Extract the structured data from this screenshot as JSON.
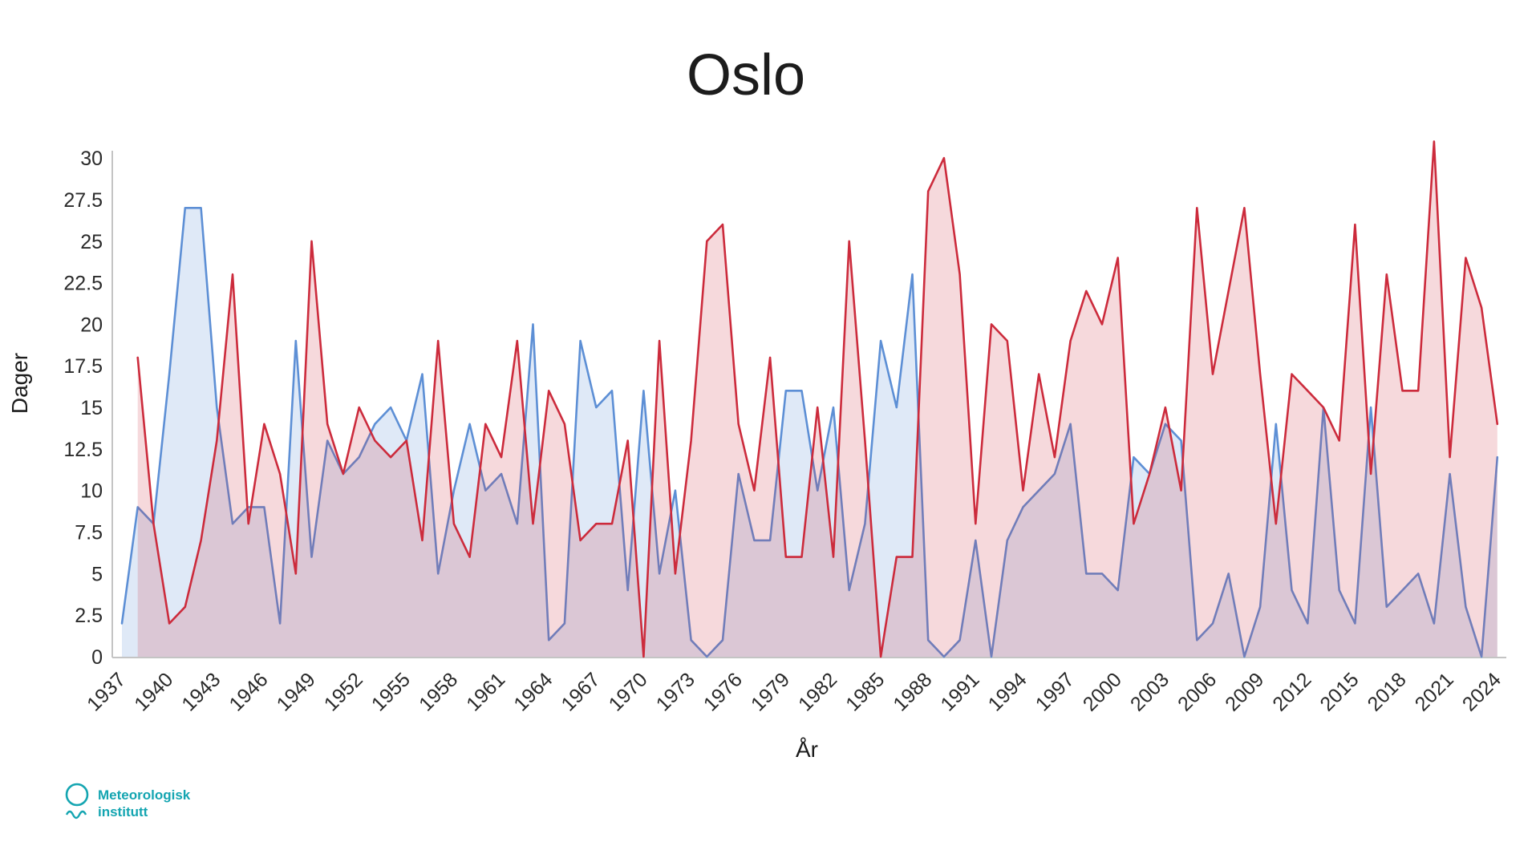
{
  "title": "Oslo",
  "y_axis": {
    "label": "Dager",
    "ticks": [
      0,
      2.5,
      5,
      7.5,
      10,
      12.5,
      15,
      17.5,
      20,
      22.5,
      25,
      27.5,
      30
    ]
  },
  "x_axis": {
    "label": "År",
    "tick_years": [
      1937,
      1940,
      1943,
      1946,
      1949,
      1952,
      1955,
      1958,
      1961,
      1964,
      1967,
      1970,
      1973,
      1976,
      1979,
      1982,
      1985,
      1988,
      1991,
      1994,
      1997,
      2000,
      2003,
      2006,
      2009,
      2012,
      2015,
      2018,
      2021,
      2024
    ]
  },
  "branding": {
    "line1": "Meteorologisk",
    "line2": "institutt",
    "color": "#14a5b1"
  },
  "chart_data": {
    "type": "area",
    "title": "Oslo",
    "xlabel": "År",
    "ylabel": "Dager",
    "xlim": [
      1937,
      2024
    ],
    "ylim": [
      0,
      31.5
    ],
    "grid": false,
    "legend": "none",
    "series": [
      {
        "name": "blue-series",
        "line_color": "#5d8fd5",
        "fill_color": "rgba(93,143,213,0.20)",
        "start_year": 1937,
        "values": [
          2,
          9,
          8,
          17,
          27,
          27,
          15,
          8,
          9,
          9,
          2,
          19,
          6,
          13,
          11,
          12,
          14,
          15,
          13,
          17,
          5,
          10,
          14,
          10,
          11,
          8,
          20,
          1,
          2,
          19,
          15,
          16,
          4,
          16,
          5,
          10,
          1,
          0,
          1,
          11,
          7,
          7,
          16,
          16,
          10,
          15,
          4,
          8,
          19,
          15,
          23,
          1,
          0,
          1,
          7,
          0,
          7,
          9,
          10,
          11,
          14,
          5,
          5,
          4,
          12,
          11,
          14,
          13,
          1,
          2,
          5,
          0,
          3,
          14,
          4,
          2,
          15,
          4,
          2,
          15,
          3,
          4,
          5,
          2,
          11,
          3,
          0,
          12
        ]
      },
      {
        "name": "red-series",
        "line_color": "#cc2b3c",
        "fill_color": "rgba(204,43,60,0.18)",
        "start_year": 1938,
        "values": [
          18,
          8,
          2,
          3,
          7,
          13,
          23,
          8,
          14,
          11,
          5,
          25,
          14,
          11,
          15,
          13,
          12,
          13,
          7,
          19,
          8,
          6,
          14,
          12,
          19,
          8,
          16,
          14,
          7,
          8,
          8,
          13,
          0,
          19,
          5,
          13,
          25,
          26,
          14,
          10,
          18,
          6,
          6,
          15,
          6,
          25,
          13,
          0,
          6,
          6,
          28,
          30,
          23,
          8,
          20,
          19,
          10,
          17,
          12,
          19,
          22,
          20,
          24,
          8,
          11,
          15,
          10,
          27,
          17,
          22,
          27,
          17,
          8,
          17,
          16,
          15,
          13,
          26,
          11,
          23,
          16,
          16,
          31,
          12,
          24,
          21,
          14
        ]
      }
    ]
  }
}
